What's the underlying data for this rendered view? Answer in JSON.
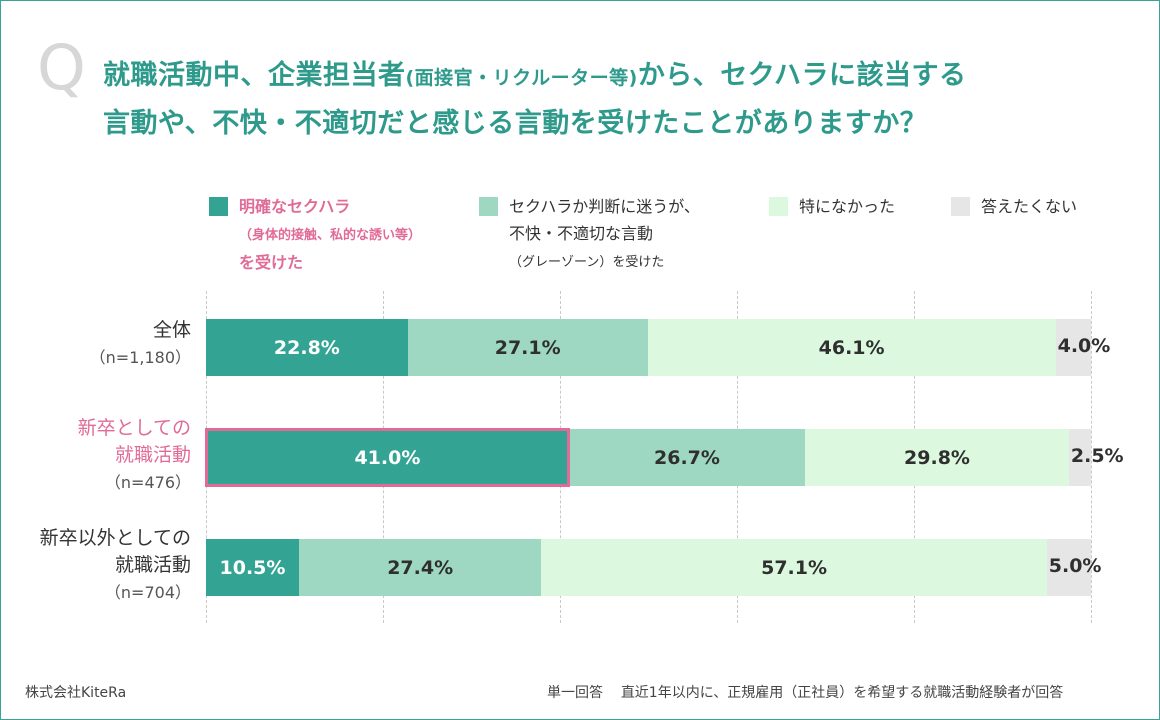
{
  "q_mark": "Q",
  "title": {
    "part1": "就職活動中、企業担当者",
    "part2": "(面接官・リクルーター等)",
    "part3": "から、セクハラに該当する",
    "line2": "言動や、不快・不適切だと感じる言動を受けたことがありますか？"
  },
  "legend": [
    {
      "line1": "明確なセクハラ",
      "line2": "（身体的接触、私的な誘い等）",
      "line3": "を受けた",
      "color": "#33a493",
      "highlight": true
    },
    {
      "line1": "セクハラか判断に迷うが、",
      "line2": "不快・不適切な言動",
      "line3": "（グレーゾーン）を受けた",
      "color": "#9ed8c3",
      "highlight": false
    },
    {
      "line1": "特になかった",
      "color": "#dcf9df",
      "highlight": false
    },
    {
      "line1": "答えたくない",
      "color": "#e6e6e6",
      "highlight": false
    }
  ],
  "chart_data": {
    "type": "bar",
    "orientation": "horizontal",
    "stacked": true,
    "xlim": [
      0,
      100
    ],
    "grid": true,
    "categories": [
      "全体",
      "新卒としての就職活動",
      "新卒以外としての就職活動"
    ],
    "category_lines": [
      [
        "全体"
      ],
      [
        "新卒としての",
        "就職活動"
      ],
      [
        "新卒以外としての",
        "就職活動"
      ]
    ],
    "sample_sizes": [
      "（n=1,180）",
      "（n=476）",
      "（n=704）"
    ],
    "series": [
      {
        "name": "明確なセクハラ（身体的接触、私的な誘い等）を受けた",
        "color": "#33a493",
        "values": [
          22.8,
          41.0,
          10.5
        ],
        "labels": [
          "22.8%",
          "41.0%",
          "10.5%"
        ]
      },
      {
        "name": "セクハラか判断に迷うが、不快・不適切な言動（グレーゾーン）を受けた",
        "color": "#9ed8c3",
        "values": [
          27.1,
          26.7,
          27.4
        ],
        "labels": [
          "27.1%",
          "26.7%",
          "27.4%"
        ]
      },
      {
        "name": "特になかった",
        "color": "#dcf9df",
        "values": [
          46.1,
          29.8,
          57.1
        ],
        "labels": [
          "46.1%",
          "29.8%",
          "57.1%"
        ]
      },
      {
        "name": "答えたくない",
        "color": "#e6e6e6",
        "values": [
          4.0,
          2.5,
          5.0
        ],
        "labels": [
          "4.0%",
          "2.5%",
          "5.0%"
        ]
      }
    ],
    "highlight_category": "新卒としての就職活動",
    "highlight_color": "#e06b97"
  },
  "footer": {
    "company": "株式会社KiteRa",
    "answer_type": "単一回答",
    "respondents": "直近1年以内に、正規雇用（正社員）を希望する就職活動経験者が回答"
  }
}
